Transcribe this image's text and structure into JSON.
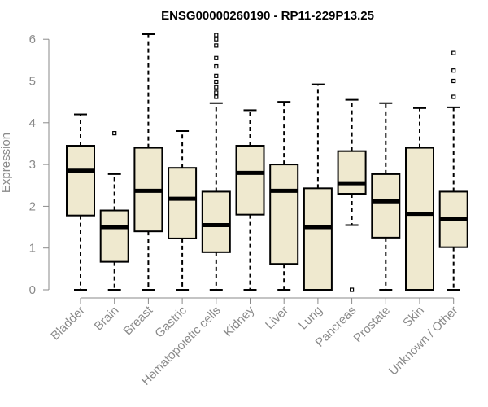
{
  "chart_data": {
    "type": "boxplot",
    "title": "ENSG00000260190 - RP11-229P13.25",
    "ylabel": "Expression",
    "ylim": [
      0,
      6.2
    ],
    "yticks": [
      0,
      1,
      2,
      3,
      4,
      5,
      6
    ],
    "categories": [
      "Bladder",
      "Brain",
      "Breast",
      "Gastric",
      "Hematopoietic cells",
      "Kidney",
      "Liver",
      "Lung",
      "Pancreas",
      "Prostate",
      "Skin",
      "Unknown / Other"
    ],
    "boxes": [
      {
        "min": 0,
        "q1": 1.78,
        "median": 2.85,
        "q3": 3.45,
        "max": 4.2,
        "outliers": []
      },
      {
        "min": 0,
        "q1": 0.67,
        "median": 1.5,
        "q3": 1.9,
        "max": 2.77,
        "outliers": [
          3.75
        ]
      },
      {
        "min": 0,
        "q1": 1.4,
        "median": 2.37,
        "q3": 3.4,
        "max": 6.12,
        "outliers": []
      },
      {
        "min": 0,
        "q1": 1.23,
        "median": 2.18,
        "q3": 2.92,
        "max": 3.8,
        "outliers": []
      },
      {
        "min": 0,
        "q1": 0.9,
        "median": 1.55,
        "q3": 2.35,
        "max": 4.47,
        "outliers": [
          4.62,
          4.72,
          4.85,
          4.98,
          5.12,
          5.35,
          5.55,
          5.85,
          6.0,
          6.1
        ]
      },
      {
        "min": 0,
        "q1": 1.8,
        "median": 2.8,
        "q3": 3.45,
        "max": 4.3,
        "outliers": []
      },
      {
        "min": 0,
        "q1": 0.62,
        "median": 2.37,
        "q3": 3.0,
        "max": 4.5,
        "outliers": []
      },
      {
        "min": 0,
        "q1": 0,
        "median": 1.5,
        "q3": 2.43,
        "max": 4.92,
        "outliers": []
      },
      {
        "min": 1.55,
        "q1": 2.3,
        "median": 2.55,
        "q3": 3.32,
        "max": 4.55,
        "outliers": [
          0
        ]
      },
      {
        "min": 0,
        "q1": 1.25,
        "median": 2.12,
        "q3": 2.77,
        "max": 4.47,
        "outliers": []
      },
      {
        "min": 0,
        "q1": 0,
        "median": 1.82,
        "q3": 3.4,
        "max": 4.35,
        "outliers": []
      },
      {
        "min": 0,
        "q1": 1.02,
        "median": 1.7,
        "q3": 2.35,
        "max": 4.37,
        "outliers": [
          4.62,
          5.0,
          5.25,
          5.67
        ]
      }
    ]
  }
}
